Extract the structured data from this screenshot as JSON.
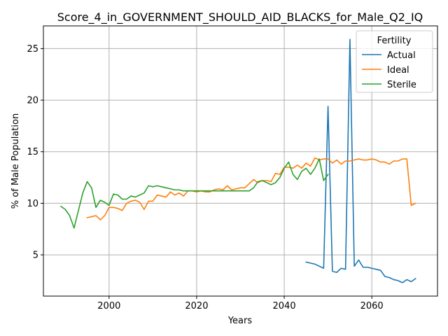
{
  "chart_data": {
    "type": "line",
    "title": "Score_4_in_GOVERNMENT_SHOULD_AID_BLACKS_for_Male_Q2_IQ",
    "xlabel": "Years",
    "ylabel": "% of Male Population",
    "xlim": [
      1985,
      2075
    ],
    "ylim": [
      1,
      27.2
    ],
    "xticks": [
      2000,
      2020,
      2040,
      2060
    ],
    "yticks": [
      5,
      10,
      15,
      20,
      25
    ],
    "grid": true,
    "legend": {
      "title": "Fertility",
      "position": "top-right"
    },
    "series": [
      {
        "name": "Actual",
        "color": "#1f77b4",
        "x": [
          2045,
          2046,
          2047,
          2048,
          2049,
          2050,
          2051,
          2052,
          2053,
          2054,
          2055,
          2056,
          2057,
          2058,
          2059,
          2060,
          2061,
          2062,
          2063,
          2064,
          2065,
          2066,
          2067,
          2068,
          2069,
          2070
        ],
        "y": [
          4.3,
          4.2,
          4.1,
          3.9,
          3.7,
          19.4,
          3.4,
          3.3,
          3.7,
          3.6,
          25.9,
          3.9,
          4.5,
          3.8,
          3.8,
          3.7,
          3.6,
          3.5,
          2.9,
          2.8,
          2.6,
          2.5,
          2.3,
          2.6,
          2.4,
          2.7
        ]
      },
      {
        "name": "Ideal",
        "color": "#ff7f0e",
        "x": [
          1995,
          1996,
          1997,
          1998,
          1999,
          2000,
          2001,
          2002,
          2003,
          2004,
          2005,
          2006,
          2007,
          2008,
          2009,
          2010,
          2011,
          2012,
          2013,
          2014,
          2015,
          2016,
          2017,
          2018,
          2019,
          2020,
          2021,
          2022,
          2023,
          2024,
          2025,
          2026,
          2027,
          2028,
          2029,
          2030,
          2031,
          2032,
          2033,
          2034,
          2035,
          2036,
          2037,
          2038,
          2039,
          2040,
          2041,
          2042,
          2043,
          2044,
          2045,
          2046,
          2047,
          2048,
          2049,
          2050,
          2051,
          2052,
          2053,
          2054,
          2055,
          2056,
          2057,
          2058,
          2059,
          2060,
          2061,
          2062,
          2063,
          2064,
          2065,
          2066,
          2067,
          2068,
          2069,
          2070
        ],
        "y": [
          8.6,
          8.7,
          8.8,
          8.4,
          8.8,
          9.6,
          9.6,
          9.5,
          9.3,
          10.0,
          10.2,
          10.3,
          10.1,
          9.4,
          10.2,
          10.2,
          10.8,
          10.7,
          10.6,
          11.1,
          10.8,
          11.0,
          10.7,
          11.2,
          11.2,
          11.1,
          11.2,
          11.1,
          11.1,
          11.3,
          11.4,
          11.3,
          11.7,
          11.3,
          11.4,
          11.5,
          11.5,
          11.9,
          12.3,
          12.0,
          12.2,
          12.2,
          12.1,
          12.9,
          12.8,
          13.5,
          13.5,
          13.4,
          13.7,
          13.4,
          13.9,
          13.6,
          14.4,
          14.2,
          14.3,
          14.3,
          13.9,
          14.2,
          13.8,
          14.1,
          14.1,
          14.2,
          14.3,
          14.2,
          14.2,
          14.3,
          14.2,
          14.0,
          14.0,
          13.8,
          14.1,
          14.1,
          14.3,
          14.3,
          9.8,
          10.0
        ]
      },
      {
        "name": "Sterile",
        "color": "#2ca02c",
        "x": [
          1989,
          1990,
          1991,
          1992,
          1993,
          1994,
          1995,
          1996,
          1997,
          1998,
          1999,
          2000,
          2001,
          2002,
          2003,
          2004,
          2005,
          2006,
          2007,
          2008,
          2009,
          2010,
          2011,
          2012,
          2013,
          2014,
          2015,
          2016,
          2017,
          2018,
          2019,
          2020,
          2021,
          2022,
          2023,
          2024,
          2025,
          2026,
          2027,
          2028,
          2029,
          2030,
          2031,
          2032,
          2033,
          2034,
          2035,
          2036,
          2037,
          2038,
          2039,
          2040,
          2041,
          2042,
          2043,
          2044,
          2045,
          2046,
          2047,
          2048,
          2049,
          2050
        ],
        "y": [
          9.7,
          9.4,
          8.8,
          7.6,
          9.3,
          11.0,
          12.1,
          11.5,
          9.6,
          10.3,
          10.1,
          9.8,
          10.9,
          10.8,
          10.4,
          10.4,
          10.7,
          10.6,
          10.8,
          11.0,
          11.7,
          11.6,
          11.7,
          11.6,
          11.5,
          11.4,
          11.3,
          11.3,
          11.2,
          11.2,
          11.2,
          11.2,
          11.2,
          11.2,
          11.2,
          11.2,
          11.2,
          11.2,
          11.2,
          11.2,
          11.2,
          11.2,
          11.2,
          11.2,
          11.5,
          12.1,
          12.2,
          12.0,
          11.8,
          12.0,
          12.5,
          13.4,
          14.0,
          12.8,
          12.3,
          13.1,
          13.4,
          12.8,
          13.4,
          14.3,
          12.2,
          12.8
        ]
      }
    ]
  }
}
